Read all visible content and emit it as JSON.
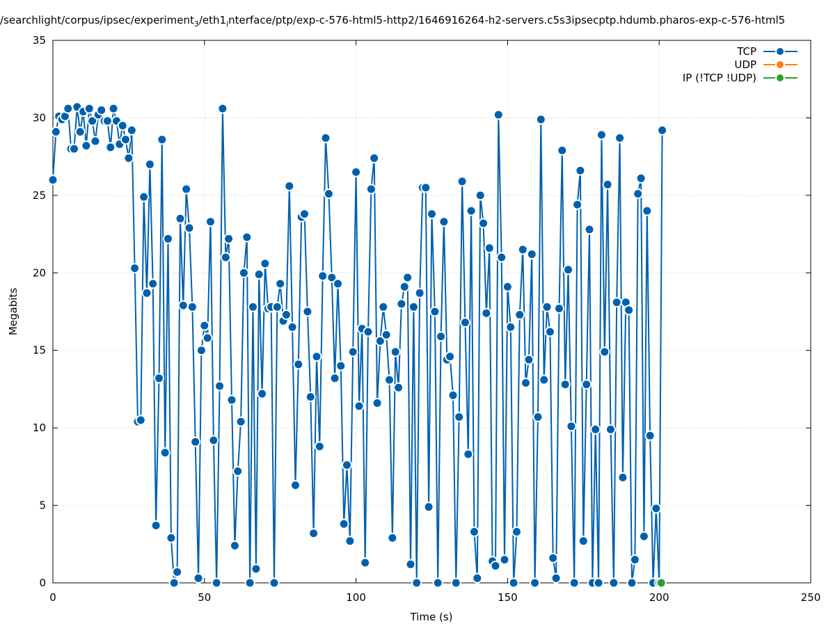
{
  "chart_data": {
    "type": "line",
    "title": "/searchlight/corpus/ipsec/experiment_3/eth1_interface/ptp/exp-c-576-html5-http2/1646916264-h2-servers.c5s3ipsecptp.hdumb.pharos-exp-c-576-html5",
    "xlabel": "Time (s)",
    "ylabel": "Megabits",
    "xlim": [
      0,
      250
    ],
    "ylim": [
      0,
      35
    ],
    "xticks": [
      0,
      50,
      100,
      150,
      200,
      250
    ],
    "yticks": [
      0,
      5,
      10,
      15,
      20,
      25,
      30,
      35
    ],
    "grid": true,
    "legend_position": "top-right",
    "series": [
      {
        "name": "TCP",
        "color": "#0060ad",
        "points": [
          [
            0,
            26.0
          ],
          [
            1,
            29.1
          ],
          [
            2,
            30.1
          ],
          [
            3,
            29.9
          ],
          [
            4,
            30.1
          ],
          [
            5,
            30.6
          ],
          [
            6,
            28.0
          ],
          [
            7,
            28.0
          ],
          [
            8,
            30.7
          ],
          [
            9,
            29.1
          ],
          [
            10,
            30.4
          ],
          [
            11,
            28.2
          ],
          [
            12,
            30.6
          ],
          [
            13,
            29.8
          ],
          [
            14,
            28.5
          ],
          [
            15,
            30.2
          ],
          [
            16,
            30.5
          ],
          [
            17,
            29.8
          ],
          [
            18,
            29.8
          ],
          [
            19,
            28.1
          ],
          [
            20,
            30.6
          ],
          [
            21,
            29.8
          ],
          [
            22,
            28.3
          ],
          [
            23,
            29.5
          ],
          [
            24,
            28.6
          ],
          [
            25,
            27.4
          ],
          [
            26,
            29.2
          ],
          [
            27,
            20.3
          ],
          [
            28,
            10.4
          ],
          [
            29,
            10.5
          ],
          [
            30,
            24.9
          ],
          [
            31,
            18.7
          ],
          [
            32,
            27.0
          ],
          [
            33,
            19.3
          ],
          [
            34,
            3.7
          ],
          [
            35,
            13.2
          ],
          [
            36,
            28.6
          ],
          [
            37,
            8.4
          ],
          [
            38,
            22.2
          ],
          [
            39,
            2.9
          ],
          [
            40,
            0
          ],
          [
            41,
            0.7
          ],
          [
            42,
            23.5
          ],
          [
            43,
            17.9
          ],
          [
            44,
            25.4
          ],
          [
            45,
            22.9
          ],
          [
            46,
            17.8
          ],
          [
            47,
            9.1
          ],
          [
            48,
            0.3
          ],
          [
            49,
            15.0
          ],
          [
            50,
            16.6
          ],
          [
            51,
            15.8
          ],
          [
            52,
            23.3
          ],
          [
            53,
            9.2
          ],
          [
            54,
            0
          ],
          [
            55,
            12.7
          ],
          [
            56,
            30.6
          ],
          [
            57,
            21.0
          ],
          [
            58,
            22.2
          ],
          [
            59,
            11.8
          ],
          [
            60,
            2.4
          ],
          [
            61,
            7.2
          ],
          [
            62,
            10.4
          ],
          [
            63,
            20.0
          ],
          [
            64,
            22.3
          ],
          [
            65,
            0
          ],
          [
            66,
            17.8
          ],
          [
            67,
            0.9
          ],
          [
            68,
            19.9
          ],
          [
            69,
            12.2
          ],
          [
            70,
            20.6
          ],
          [
            71,
            17.7
          ],
          [
            72,
            17.8
          ],
          [
            73,
            0
          ],
          [
            74,
            17.8
          ],
          [
            75,
            19.3
          ],
          [
            76,
            16.9
          ],
          [
            77,
            17.3
          ],
          [
            78,
            25.6
          ],
          [
            79,
            16.5
          ],
          [
            80,
            6.3
          ],
          [
            81,
            14.1
          ],
          [
            82,
            23.6
          ],
          [
            83,
            23.8
          ],
          [
            84,
            17.5
          ],
          [
            85,
            12.0
          ],
          [
            86,
            3.2
          ],
          [
            87,
            14.6
          ],
          [
            88,
            8.8
          ],
          [
            89,
            19.8
          ],
          [
            90,
            28.7
          ],
          [
            91,
            25.1
          ],
          [
            92,
            19.7
          ],
          [
            93,
            13.2
          ],
          [
            94,
            19.3
          ],
          [
            95,
            14.0
          ],
          [
            96,
            3.8
          ],
          [
            97,
            7.6
          ],
          [
            98,
            2.7
          ],
          [
            99,
            14.9
          ],
          [
            100,
            26.5
          ],
          [
            101,
            11.4
          ],
          [
            102,
            16.4
          ],
          [
            103,
            1.3
          ],
          [
            104,
            16.2
          ],
          [
            105,
            25.4
          ],
          [
            106,
            27.4
          ],
          [
            107,
            11.6
          ],
          [
            108,
            15.6
          ],
          [
            109,
            17.8
          ],
          [
            110,
            16.0
          ],
          [
            111,
            13.1
          ],
          [
            112,
            2.9
          ],
          [
            113,
            14.9
          ],
          [
            114,
            12.6
          ],
          [
            115,
            18.0
          ],
          [
            116,
            19.1
          ],
          [
            117,
            19.7
          ],
          [
            118,
            1.2
          ],
          [
            119,
            17.8
          ],
          [
            120,
            0
          ],
          [
            121,
            18.7
          ],
          [
            122,
            25.5
          ],
          [
            123,
            25.5
          ],
          [
            124,
            4.9
          ],
          [
            125,
            23.8
          ],
          [
            126,
            17.5
          ],
          [
            127,
            0
          ],
          [
            128,
            15.9
          ],
          [
            129,
            23.3
          ],
          [
            130,
            14.4
          ],
          [
            131,
            14.6
          ],
          [
            132,
            12.1
          ],
          [
            133,
            0
          ],
          [
            134,
            10.7
          ],
          [
            135,
            25.9
          ],
          [
            136,
            16.8
          ],
          [
            137,
            8.3
          ],
          [
            138,
            24.0
          ],
          [
            139,
            3.3
          ],
          [
            140,
            0.3
          ],
          [
            141,
            25.0
          ],
          [
            142,
            23.2
          ],
          [
            143,
            17.4
          ],
          [
            144,
            21.6
          ],
          [
            145,
            1.4
          ],
          [
            146,
            1.1
          ],
          [
            147,
            30.2
          ],
          [
            148,
            21.0
          ],
          [
            149,
            1.5
          ],
          [
            150,
            19.1
          ],
          [
            151,
            16.5
          ],
          [
            152,
            0
          ],
          [
            153,
            3.3
          ],
          [
            154,
            17.3
          ],
          [
            155,
            21.5
          ],
          [
            156,
            12.9
          ],
          [
            157,
            14.4
          ],
          [
            158,
            21.2
          ],
          [
            159,
            0
          ],
          [
            160,
            10.7
          ],
          [
            161,
            29.9
          ],
          [
            162,
            13.1
          ],
          [
            163,
            17.8
          ],
          [
            164,
            16.2
          ],
          [
            165,
            1.6
          ],
          [
            166,
            0.3
          ],
          [
            167,
            17.7
          ],
          [
            168,
            27.9
          ],
          [
            169,
            12.8
          ],
          [
            170,
            20.2
          ],
          [
            171,
            10.1
          ],
          [
            172,
            0
          ],
          [
            173,
            24.4
          ],
          [
            174,
            26.6
          ],
          [
            175,
            2.7
          ],
          [
            176,
            12.8
          ],
          [
            177,
            22.8
          ],
          [
            178,
            0
          ],
          [
            179,
            9.9
          ],
          [
            180,
            0
          ],
          [
            181,
            28.9
          ],
          [
            182,
            14.9
          ],
          [
            183,
            25.7
          ],
          [
            184,
            9.9
          ],
          [
            185,
            0
          ],
          [
            186,
            18.1
          ],
          [
            187,
            28.7
          ],
          [
            188,
            6.8
          ],
          [
            189,
            18.1
          ],
          [
            190,
            17.6
          ],
          [
            191,
            0
          ],
          [
            192,
            1.5
          ],
          [
            193,
            25.1
          ],
          [
            194,
            26.1
          ],
          [
            195,
            3.0
          ],
          [
            196,
            24.0
          ],
          [
            197,
            9.5
          ],
          [
            198,
            0
          ],
          [
            199,
            4.8
          ],
          [
            200,
            0
          ],
          [
            201,
            29.2
          ]
        ]
      },
      {
        "name": "UDP",
        "color": "#ff7f0e",
        "points": []
      },
      {
        "name": "IP (!TCP  !UDP)",
        "color": "#2ca02c",
        "points": [
          [
            200.7,
            0
          ]
        ]
      }
    ]
  }
}
